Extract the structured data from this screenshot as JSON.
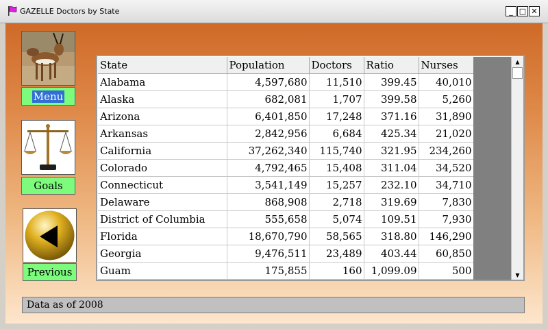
{
  "window": {
    "title": "GAZELLE Doctors by State",
    "minimize_glyph": "_",
    "maximize_glyph": "□",
    "close_glyph": "✕"
  },
  "nav": {
    "menu_label": "Menu",
    "goals_label": "Goals",
    "previous_label": "Previous",
    "menu_icon": "gazelle-photo",
    "goals_icon": "scales-of-justice-icon",
    "previous_icon": "back-arrow-orb-icon"
  },
  "table": {
    "columns": [
      "State",
      "Population",
      "Doctors",
      "Ratio",
      "Nurses"
    ],
    "rows": [
      [
        "Alabama",
        "4,597,680",
        "11,510",
        "399.45",
        "40,010"
      ],
      [
        "Alaska",
        "682,081",
        "1,707",
        "399.58",
        "5,260"
      ],
      [
        "Arizona",
        "6,401,850",
        "17,248",
        "371.16",
        "31,890"
      ],
      [
        "Arkansas",
        "2,842,956",
        "6,684",
        "425.34",
        "21,020"
      ],
      [
        "California",
        "37,262,340",
        "115,740",
        "321.95",
        "234,260"
      ],
      [
        "Colorado",
        "4,792,465",
        "15,408",
        "311.04",
        "34,520"
      ],
      [
        "Connecticut",
        "3,541,149",
        "15,257",
        "232.10",
        "34,710"
      ],
      [
        "Delaware",
        "868,908",
        "2,718",
        "319.69",
        "7,830"
      ],
      [
        "District of Columbia",
        "555,658",
        "5,074",
        "109.51",
        "7,930"
      ],
      [
        "Florida",
        "18,670,790",
        "58,565",
        "318.80",
        "146,290"
      ],
      [
        "Georgia",
        "9,476,511",
        "23,489",
        "403.44",
        "60,850"
      ],
      [
        "Guam",
        "175,855",
        "160",
        "1,099.09",
        "500"
      ]
    ]
  },
  "status": {
    "text": "Data as of 2008"
  },
  "colors": {
    "accent_green": "#7cfb7c",
    "selection_blue": "#2f6fd6",
    "background_top": "#cf6a28",
    "background_bottom": "#fde6cc"
  }
}
